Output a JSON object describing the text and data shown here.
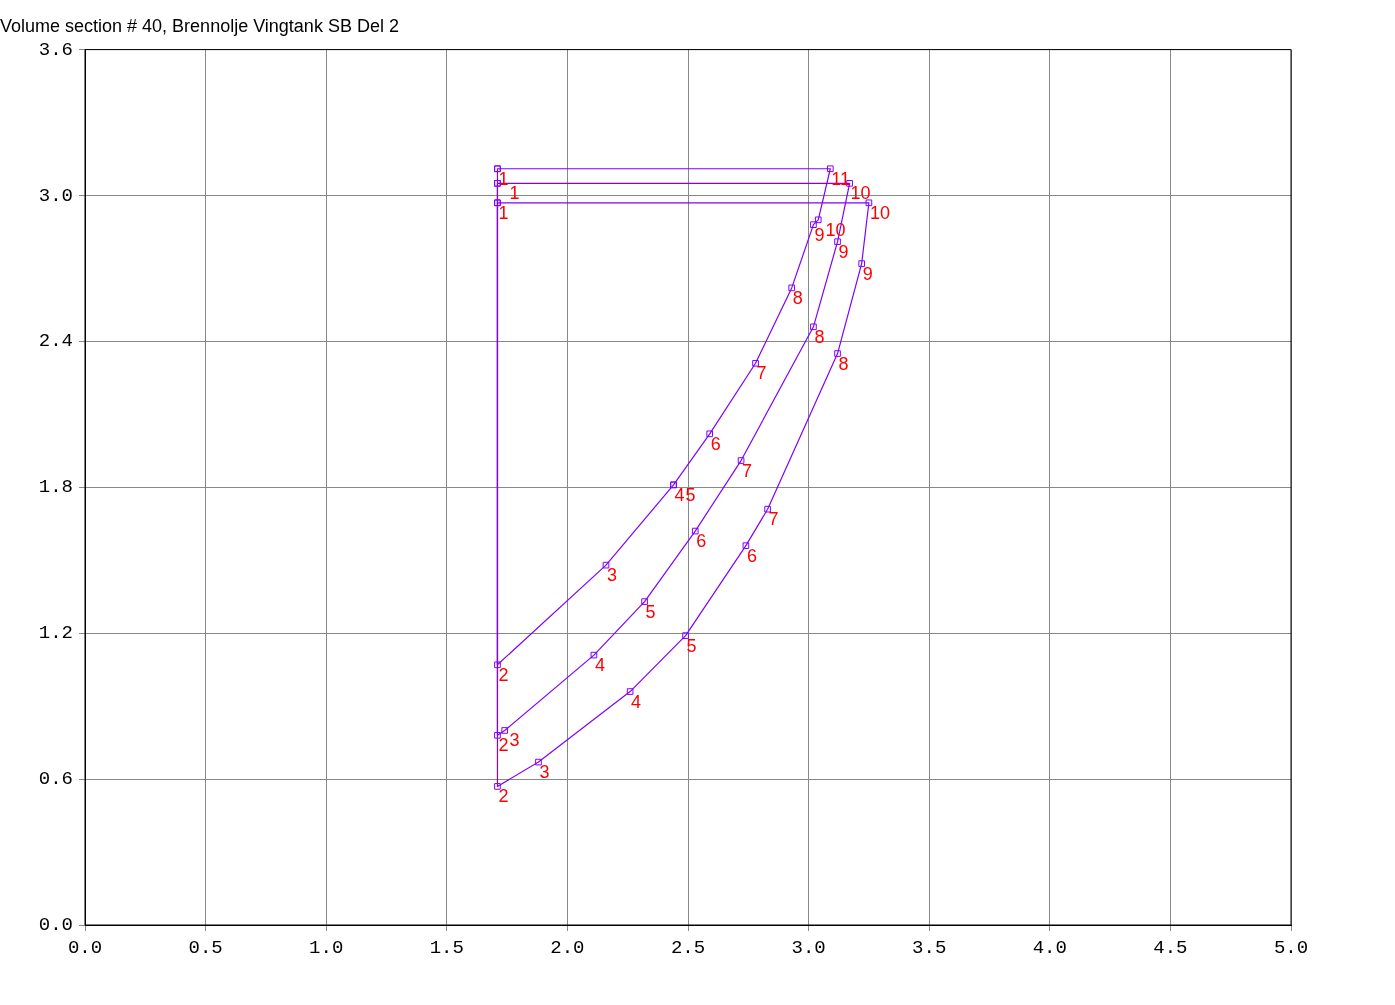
{
  "chart_data": {
    "type": "scatter",
    "title": "Volume section # 40, Brennolje Vingtank SB Del 2",
    "xlim": [
      0,
      5
    ],
    "ylim": [
      0,
      3.6
    ],
    "xticks": [
      {
        "value": 0,
        "label": "0.0"
      },
      {
        "value": 0.5,
        "label": "0.5"
      },
      {
        "value": 1,
        "label": "1.0"
      },
      {
        "value": 1.5,
        "label": "1.5"
      },
      {
        "value": 2,
        "label": "2.0"
      },
      {
        "value": 2.5,
        "label": "2.5"
      },
      {
        "value": 3,
        "label": "3.0"
      },
      {
        "value": 3.5,
        "label": "3.5"
      },
      {
        "value": 4,
        "label": "4.0"
      },
      {
        "value": 4.5,
        "label": "4.5"
      },
      {
        "value": 5,
        "label": "5.0"
      }
    ],
    "yticks": [
      {
        "value": 0,
        "label": "0.0"
      },
      {
        "value": 0.6,
        "label": "0.6"
      },
      {
        "value": 1.2,
        "label": "1.2"
      },
      {
        "value": 1.8,
        "label": "1.8"
      },
      {
        "value": 2.4,
        "label": "2.4"
      },
      {
        "value": 3,
        "label": "3.0"
      },
      {
        "value": 3.6,
        "label": "3.6"
      }
    ],
    "grid": true,
    "marker": "square",
    "line_style": "solid",
    "series": [
      {
        "color": "#8000ff",
        "x": [
          1.71,
          1.71,
          2.16,
          2.44,
          2.44,
          2.59,
          2.78,
          2.93,
          3.02,
          3.04,
          3.09,
          1.71
        ],
        "values": [
          3.11,
          1.07,
          1.48,
          1.81,
          1.81,
          2.02,
          2.31,
          2.62,
          2.88,
          2.9,
          3.11,
          3.11
        ]
      },
      {
        "color": "#8000ff",
        "x": [
          1.71,
          1.71,
          1.74,
          2.11,
          2.32,
          2.53,
          2.72,
          3.02,
          3.12,
          3.17,
          1.71
        ],
        "values": [
          3.05,
          0.78,
          0.8,
          1.11,
          1.33,
          1.62,
          1.91,
          2.46,
          2.81,
          3.05,
          3.05
        ]
      },
      {
        "color": "#8000ff",
        "x": [
          1.71,
          1.71,
          1.88,
          2.26,
          2.49,
          2.74,
          2.83,
          3.12,
          3.22,
          3.25,
          1.71
        ],
        "values": [
          2.97,
          0.57,
          0.67,
          0.96,
          1.19,
          1.56,
          1.71,
          2.35,
          2.72,
          2.97,
          2.97
        ]
      }
    ],
    "annotations": [
      {
        "text": "1",
        "x": 1.71,
        "y": 3.11
      },
      {
        "text": "2",
        "x": 1.71,
        "y": 1.07
      },
      {
        "text": "3",
        "x": 2.16,
        "y": 1.48
      },
      {
        "text": "4",
        "x": 2.44,
        "y": 1.81
      },
      {
        "text": "5",
        "x": 2.44,
        "y": 1.81
      },
      {
        "text": "6",
        "x": 2.59,
        "y": 2.02
      },
      {
        "text": "7",
        "x": 2.78,
        "y": 2.31
      },
      {
        "text": "8",
        "x": 2.93,
        "y": 2.62
      },
      {
        "text": "9",
        "x": 3.02,
        "y": 2.88
      },
      {
        "text": "10",
        "x": 3.04,
        "y": 2.9
      },
      {
        "text": "11",
        "x": 3.09,
        "y": 3.11
      },
      {
        "text": "1",
        "x": 1.71,
        "y": 3.05
      },
      {
        "text": "2",
        "x": 1.71,
        "y": 0.78
      },
      {
        "text": "3",
        "x": 1.74,
        "y": 0.8
      },
      {
        "text": "4",
        "x": 2.11,
        "y": 1.11
      },
      {
        "text": "5",
        "x": 2.32,
        "y": 1.33
      },
      {
        "text": "6",
        "x": 2.53,
        "y": 1.62
      },
      {
        "text": "7",
        "x": 2.72,
        "y": 1.91
      },
      {
        "text": "8",
        "x": 3.02,
        "y": 2.46
      },
      {
        "text": "9",
        "x": 3.12,
        "y": 2.81
      },
      {
        "text": "10",
        "x": 3.17,
        "y": 3.05
      },
      {
        "text": "1",
        "x": 1.71,
        "y": 2.97
      },
      {
        "text": "2",
        "x": 1.71,
        "y": 0.57
      },
      {
        "text": "3",
        "x": 1.88,
        "y": 0.67
      },
      {
        "text": "4",
        "x": 2.26,
        "y": 0.96
      },
      {
        "text": "5",
        "x": 2.49,
        "y": 1.19
      },
      {
        "text": "6",
        "x": 2.74,
        "y": 1.56
      },
      {
        "text": "7",
        "x": 2.83,
        "y": 1.71
      },
      {
        "text": "8",
        "x": 3.12,
        "y": 2.35
      },
      {
        "text": "9",
        "x": 3.22,
        "y": 2.72
      },
      {
        "text": "10",
        "x": 3.25,
        "y": 2.97
      }
    ]
  }
}
